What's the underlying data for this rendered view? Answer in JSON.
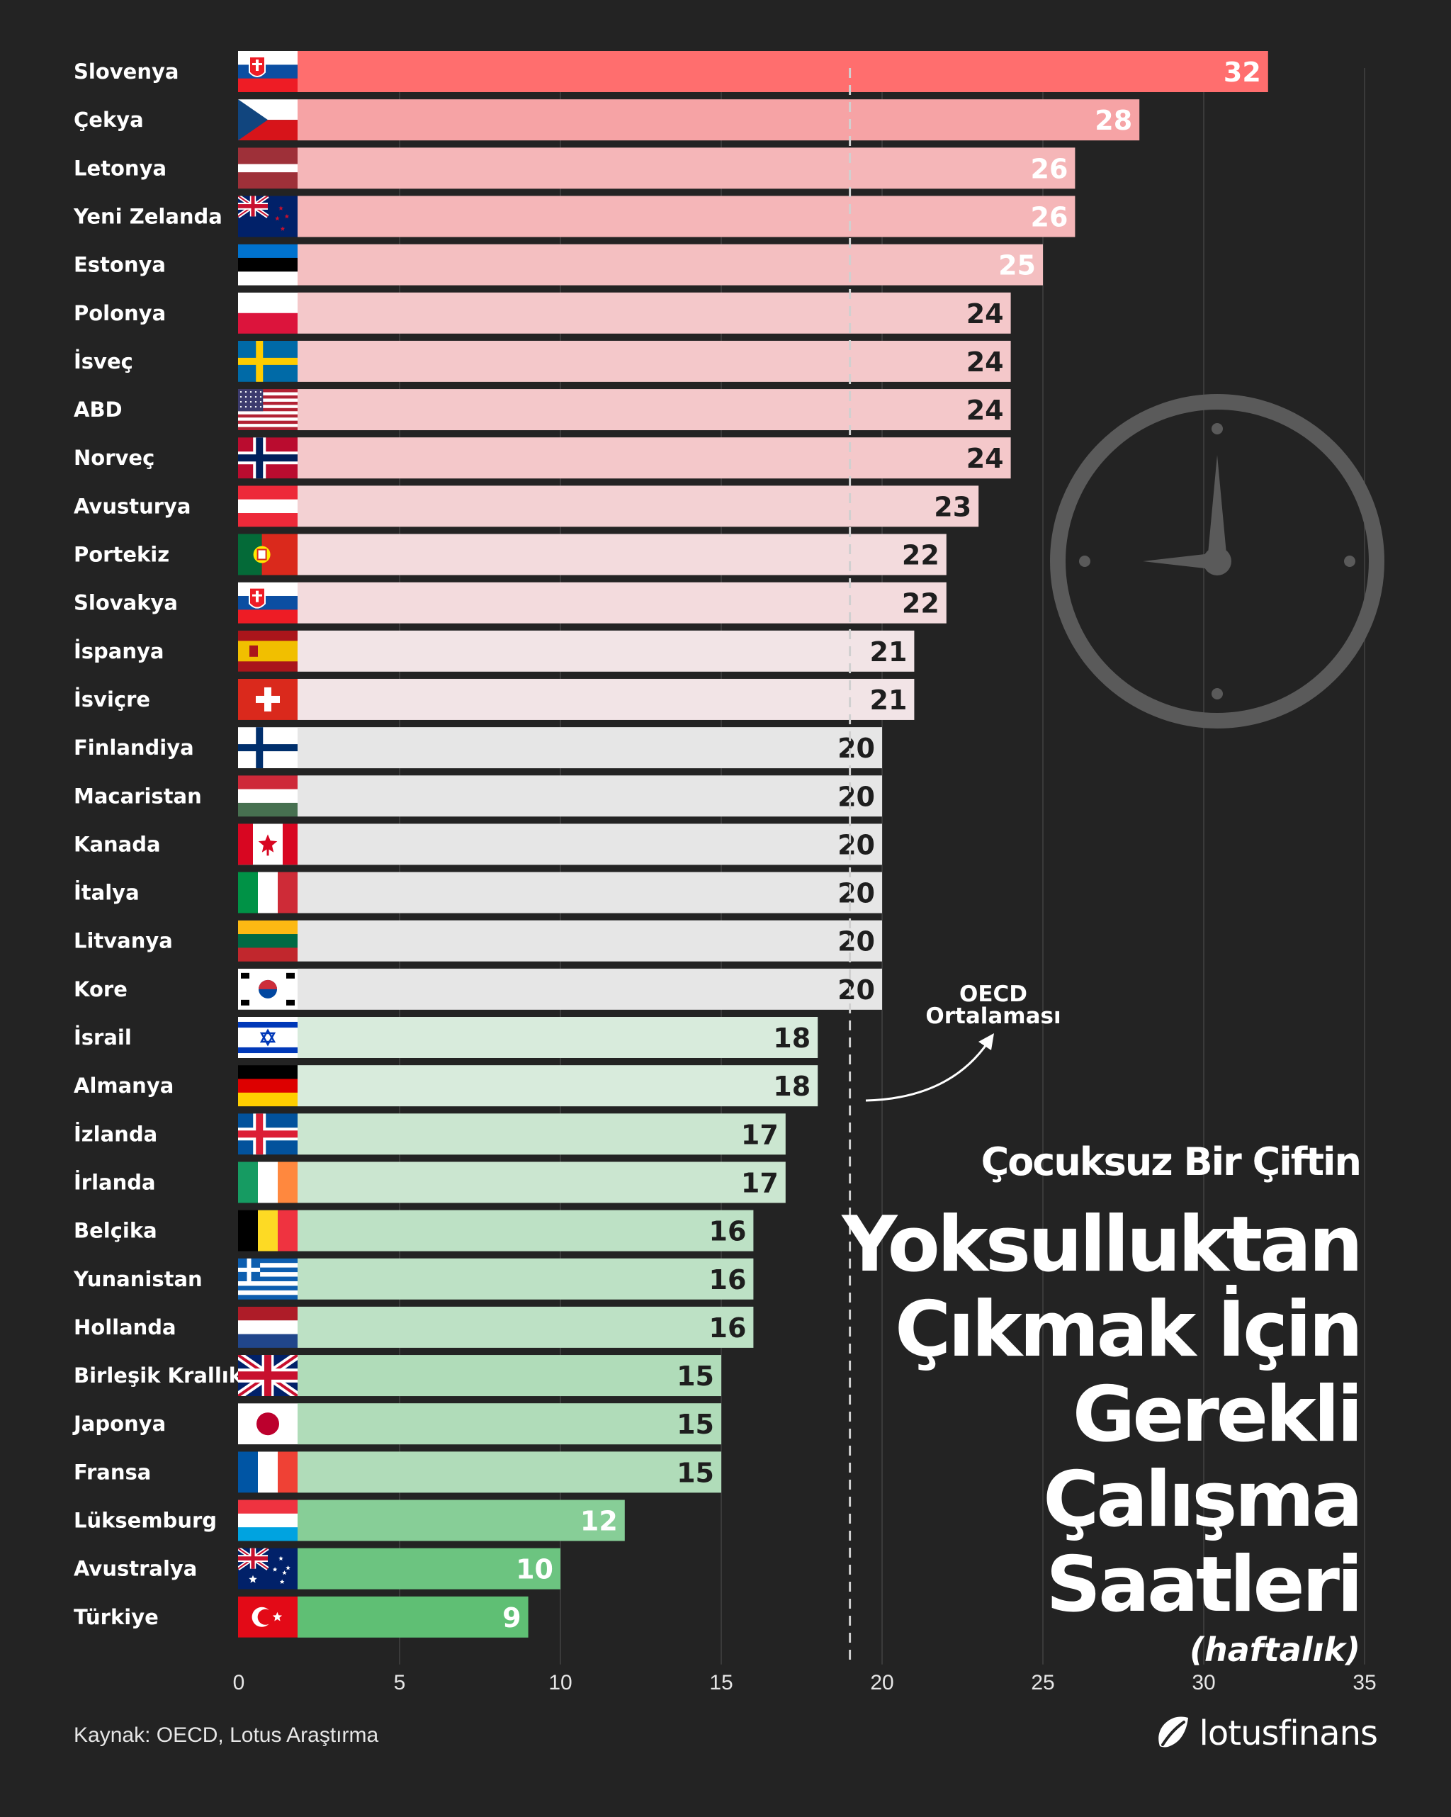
{
  "chart_data": {
    "type": "bar",
    "orientation": "horizontal",
    "title": "Yoksulluktan Çıkmak İçin Gerekli Çalışma Saatleri",
    "subtitle": "Çocuksuz Bir Çiftin",
    "unit_note": "(haftalık)",
    "categories": [
      "Slovenya",
      "Çekya",
      "Letonya",
      "Yeni Zelanda",
      "Estonya",
      "Polonya",
      "İsveç",
      "ABD",
      "Norveç",
      "Avusturya",
      "Portekiz",
      "Slovakya",
      "İspanya",
      "İsviçre",
      "Finlandiya",
      "Macaristan",
      "Kanada",
      "İtalya",
      "Litvanya",
      "Kore",
      "İsrail",
      "Almanya",
      "İzlanda",
      "İrlanda",
      "Belçika",
      "Yunanistan",
      "Hollanda",
      "Birleşik Krallık",
      "Japonya",
      "Fransa",
      "Lüksemburg",
      "Avustralya",
      "Türkiye"
    ],
    "values": [
      32,
      28,
      26,
      26,
      25,
      24,
      24,
      24,
      24,
      23,
      22,
      22,
      21,
      21,
      20,
      20,
      20,
      20,
      20,
      20,
      18,
      18,
      17,
      17,
      16,
      16,
      16,
      15,
      15,
      15,
      12,
      10,
      9
    ],
    "xlim": [
      0,
      35
    ],
    "xticks": [
      0,
      5,
      10,
      15,
      20,
      25,
      30,
      35
    ],
    "grid": true,
    "reference_line": {
      "label_line1": "OECD",
      "label_line2": "Ortalaması",
      "value": 19
    },
    "flags": [
      "slovenia",
      "czechia",
      "latvia",
      "new-zealand",
      "estonia",
      "poland",
      "sweden",
      "usa",
      "norway",
      "austria",
      "portugal",
      "slovakia",
      "spain",
      "switzerland",
      "finland",
      "hungary",
      "canada",
      "italy",
      "lithuania",
      "korea",
      "israel",
      "germany",
      "iceland",
      "ireland",
      "belgium",
      "greece",
      "netherlands",
      "uk",
      "japan",
      "france",
      "luxembourg",
      "australia",
      "turkey"
    ],
    "colors": {
      "max": "#FF6E6E",
      "upper": "#F7C4C6",
      "mid": "#E6E6E6",
      "lower": "#D8EBDC",
      "min": "#5FBF74",
      "background": "#232323"
    }
  },
  "source": "Kaynak: OECD, Lotus Araştırma",
  "brand": {
    "name": "lotusfinans",
    "icon": "lotus-leaf-icon"
  }
}
